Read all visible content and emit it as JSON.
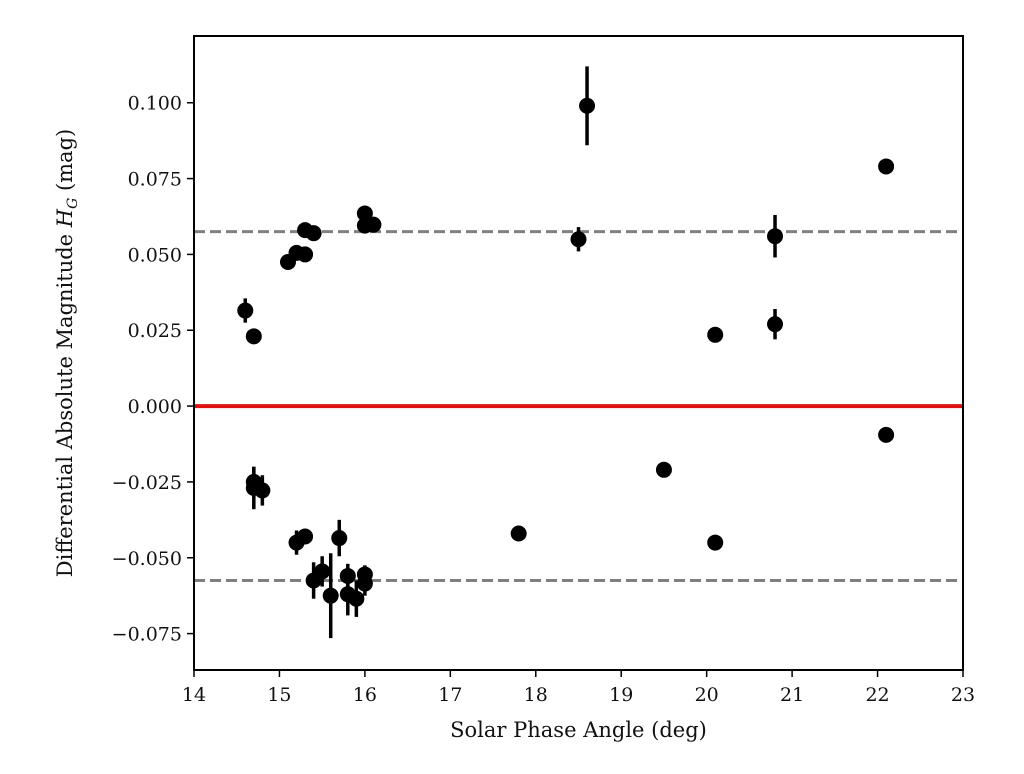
{
  "chart_data": {
    "type": "scatter",
    "xlabel": "Solar Phase Angle (deg)",
    "ylabel": "Differential Absolute Magnitude H_G (mag)",
    "ylabel_parts": {
      "pre": "Differential Absolute Magnitude ",
      "symbol": "H",
      "subscript": "G",
      "post": " (mag)"
    },
    "xlim": [
      14,
      23
    ],
    "ylim": [
      -0.087,
      0.122
    ],
    "xticks": [
      14,
      15,
      16,
      17,
      18,
      19,
      20,
      21,
      22,
      23
    ],
    "yticks": [
      -0.075,
      -0.05,
      -0.025,
      0.0,
      0.025,
      0.05,
      0.075,
      0.1
    ],
    "ytick_labels": [
      "−0.075",
      "−0.050",
      "−0.025",
      "0.000",
      "0.025",
      "0.050",
      "0.075",
      "0.100"
    ],
    "grid": false,
    "reference_lines": [
      {
        "y": 0.0,
        "style": "solid",
        "color": "#dd1111"
      },
      {
        "y": 0.0575,
        "style": "dashed",
        "color": "#808080"
      },
      {
        "y": -0.0575,
        "style": "dashed",
        "color": "#808080"
      }
    ],
    "marker_color": "#000000",
    "points": [
      {
        "x": 14.6,
        "y": 0.0315,
        "err": 0.004
      },
      {
        "x": 14.7,
        "y": 0.023,
        "err": 0.001
      },
      {
        "x": 15.1,
        "y": 0.0475,
        "err": 0.001
      },
      {
        "x": 15.2,
        "y": 0.0505,
        "err": 0.001
      },
      {
        "x": 15.3,
        "y": 0.05,
        "err": 0.001
      },
      {
        "x": 15.3,
        "y": 0.058,
        "err": 0.001
      },
      {
        "x": 15.4,
        "y": 0.057,
        "err": 0.001
      },
      {
        "x": 16.0,
        "y": 0.0635,
        "err": 0.001
      },
      {
        "x": 16.0,
        "y": 0.0595,
        "err": 0.001
      },
      {
        "x": 16.1,
        "y": 0.0598,
        "err": 0.001
      },
      {
        "x": 18.5,
        "y": 0.055,
        "err": 0.004
      },
      {
        "x": 18.6,
        "y": 0.099,
        "err": 0.013
      },
      {
        "x": 20.1,
        "y": 0.0235,
        "err": 0.002
      },
      {
        "x": 20.8,
        "y": 0.027,
        "err": 0.005
      },
      {
        "x": 20.8,
        "y": 0.056,
        "err": 0.007
      },
      {
        "x": 22.1,
        "y": 0.079,
        "err": 0.001
      },
      {
        "x": 14.7,
        "y": -0.025,
        "err": 0.005
      },
      {
        "x": 14.7,
        "y": -0.027,
        "err": 0.007
      },
      {
        "x": 14.8,
        "y": -0.0278,
        "err": 0.005
      },
      {
        "x": 15.2,
        "y": -0.045,
        "err": 0.004
      },
      {
        "x": 15.3,
        "y": -0.043,
        "err": 0.002
      },
      {
        "x": 15.4,
        "y": -0.0575,
        "err": 0.006
      },
      {
        "x": 15.5,
        "y": -0.0545,
        "err": 0.005
      },
      {
        "x": 15.6,
        "y": -0.0625,
        "err": 0.014
      },
      {
        "x": 15.7,
        "y": -0.0435,
        "err": 0.006
      },
      {
        "x": 15.8,
        "y": -0.056,
        "err": 0.004
      },
      {
        "x": 15.8,
        "y": -0.062,
        "err": 0.007
      },
      {
        "x": 15.9,
        "y": -0.0635,
        "err": 0.006
      },
      {
        "x": 16.0,
        "y": -0.0555,
        "err": 0.003
      },
      {
        "x": 16.0,
        "y": -0.0585,
        "err": 0.004
      },
      {
        "x": 17.8,
        "y": -0.042,
        "err": 0.001
      },
      {
        "x": 19.5,
        "y": -0.021,
        "err": 0.001
      },
      {
        "x": 20.1,
        "y": -0.045,
        "err": 0.001
      },
      {
        "x": 22.1,
        "y": -0.0095,
        "err": 0.001
      }
    ]
  }
}
